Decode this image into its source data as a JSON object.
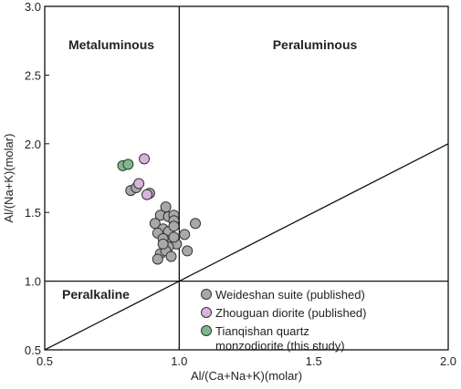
{
  "chart_data": {
    "type": "scatter",
    "xlabel": "Al/(Ca+Na+K)(molar)",
    "ylabel": "Al/(Na+K)(molar)",
    "xlim": [
      0.5,
      2.0
    ],
    "ylim": [
      0.5,
      3.0
    ],
    "x_ticks": [
      "0.5",
      "1.0",
      "1.5",
      "2.0"
    ],
    "y_ticks": [
      "0.5",
      "1.0",
      "1.5",
      "2.0",
      "2.5",
      "3.0"
    ],
    "grid": false,
    "legend_position": "bottom-right",
    "regions": [
      "Metaluminous",
      "Peraluminous",
      "Peralkaline"
    ],
    "series": [
      {
        "name": "Weideshan suite (published)",
        "color": "#a8a8a8",
        "points": [
          [
            0.93,
            1.48
          ],
          [
            0.96,
            1.47
          ],
          [
            0.98,
            1.48
          ],
          [
            0.95,
            1.54
          ],
          [
            0.98,
            1.44
          ],
          [
            0.91,
            1.42
          ],
          [
            0.94,
            1.38
          ],
          [
            0.92,
            1.35
          ],
          [
            0.96,
            1.36
          ],
          [
            0.98,
            1.4
          ],
          [
            1.06,
            1.42
          ],
          [
            1.02,
            1.34
          ],
          [
            0.95,
            1.3
          ],
          [
            0.97,
            1.28
          ],
          [
            0.99,
            1.27
          ],
          [
            0.96,
            1.25
          ],
          [
            0.94,
            1.31
          ],
          [
            0.93,
            1.2
          ],
          [
            0.95,
            1.22
          ],
          [
            0.92,
            1.16
          ],
          [
            0.97,
            1.18
          ],
          [
            1.03,
            1.22
          ],
          [
            0.98,
            1.32
          ],
          [
            0.94,
            1.27
          ]
        ]
      },
      {
        "name": "Zhouguan diorite (published)",
        "color": "#d9b3dc",
        "points": [
          [
            0.87,
            1.89
          ],
          [
            0.85,
            1.71
          ],
          [
            0.88,
            1.63
          ]
        ]
      },
      {
        "name": "Tianqishan quartz monzodiorite (this study)",
        "color": "#7cb98a",
        "points": [
          [
            0.79,
            1.84
          ],
          [
            0.81,
            1.85
          ]
        ]
      }
    ],
    "extra_gray_points": [
      [
        0.82,
        1.66
      ],
      [
        0.84,
        1.68
      ],
      [
        0.89,
        1.64
      ]
    ],
    "legend_entries": [
      {
        "lines": [
          "Weideshan suite (published)"
        ]
      },
      {
        "lines": [
          "Zhouguan diorite (published)"
        ]
      },
      {
        "lines": [
          "Tianqishan quartz",
          "monzodiorite (this study)"
        ]
      }
    ]
  }
}
